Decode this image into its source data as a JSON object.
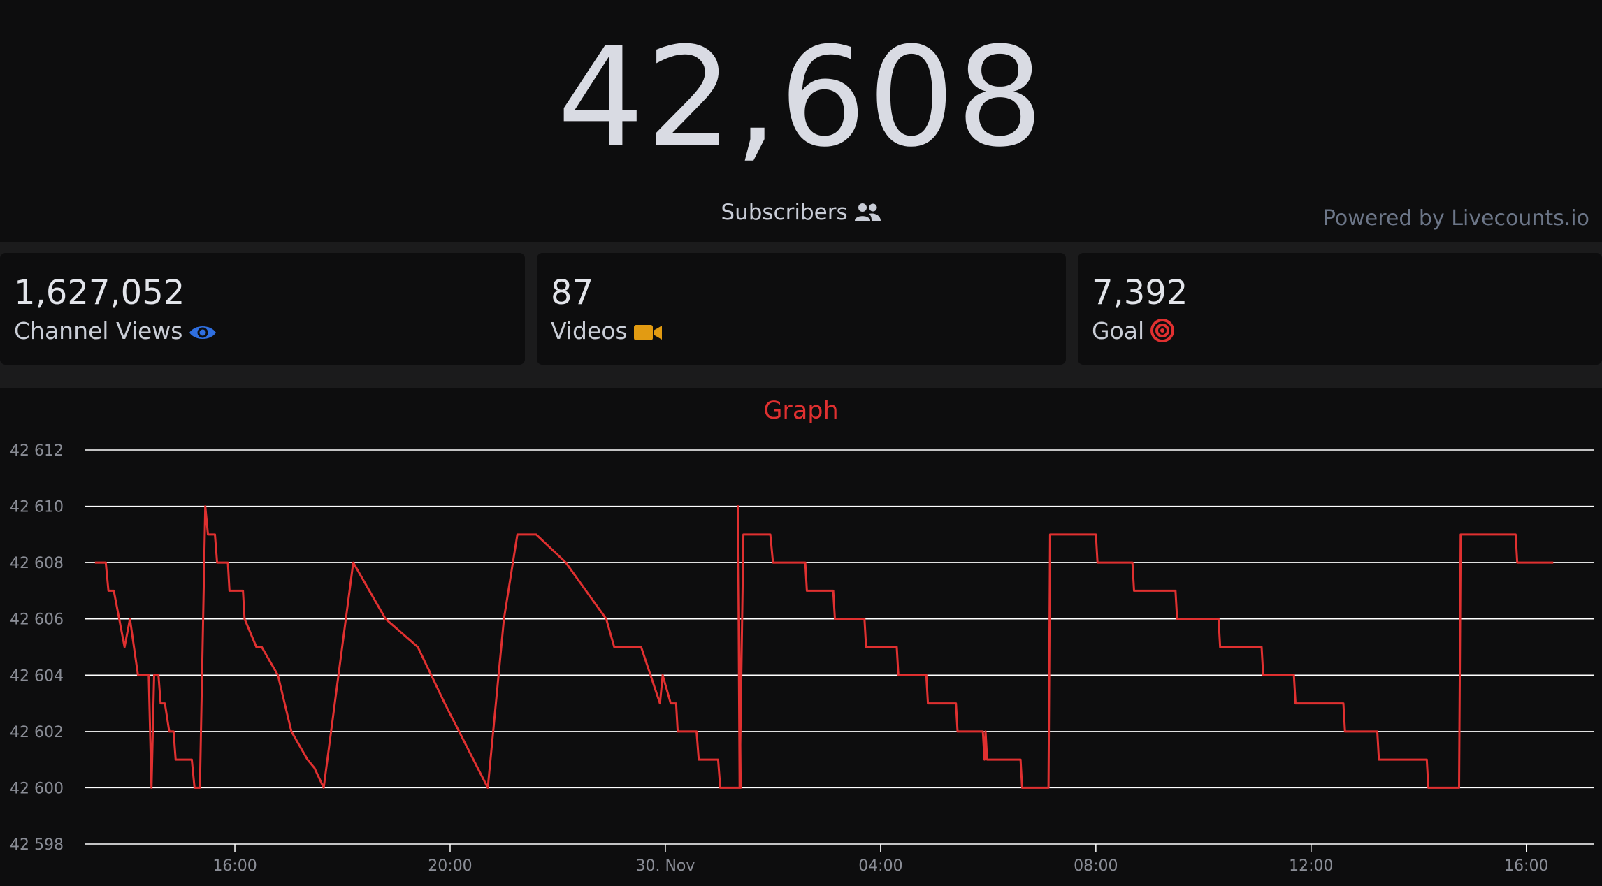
{
  "header": {
    "count": "42,608",
    "subscribers_label": "Subscribers",
    "powered_by": "Powered by Livecounts.io"
  },
  "stats": [
    {
      "value": "1,627,052",
      "label": "Channel Views",
      "icon": "eye-icon",
      "color": "#2f6fe0"
    },
    {
      "value": "87",
      "label": "Videos",
      "icon": "video-camera-icon",
      "color": "#e29b12"
    },
    {
      "value": "7,392",
      "label": "Goal",
      "icon": "target-icon",
      "color": "#e03030"
    }
  ],
  "graph": {
    "title": "Graph"
  },
  "colors": {
    "background": "#0d0d0e",
    "strip": "#1b1b1c",
    "line": "#e03030",
    "grid": "#ffffff"
  },
  "chart_data": {
    "type": "line",
    "title": "Graph",
    "xlabel": "",
    "ylabel": "",
    "ylim": [
      42598,
      42612
    ],
    "grid": true,
    "x_unit": "hours since 12:00 on 29 Nov",
    "xlim": [
      1.22,
      29.25
    ],
    "x_ticks": [
      {
        "x": 4,
        "label": "16:00"
      },
      {
        "x": 8,
        "label": "20:00"
      },
      {
        "x": 12,
        "label": "30. Nov"
      },
      {
        "x": 16,
        "label": "04:00"
      },
      {
        "x": 20,
        "label": "08:00"
      },
      {
        "x": 24,
        "label": "12:00"
      },
      {
        "x": 28,
        "label": "16:00"
      }
    ],
    "y_ticks": [
      {
        "y": 42612,
        "label": "42 612"
      },
      {
        "y": 42610,
        "label": "42 610"
      },
      {
        "y": 42608,
        "label": "42 608"
      },
      {
        "y": 42606,
        "label": "42 606"
      },
      {
        "y": 42604,
        "label": "42 604"
      },
      {
        "y": 42602,
        "label": "42 602"
      },
      {
        "y": 42600,
        "label": "42 600"
      },
      {
        "y": 42598,
        "label": "42 598"
      }
    ],
    "series": [
      {
        "name": "Subscribers",
        "color": "#e03030",
        "points": [
          [
            1.4,
            42608
          ],
          [
            1.6,
            42608
          ],
          [
            1.65,
            42607
          ],
          [
            1.75,
            42607
          ],
          [
            1.85,
            42606
          ],
          [
            1.95,
            42605
          ],
          [
            2.05,
            42606
          ],
          [
            2.2,
            42604
          ],
          [
            2.4,
            42604
          ],
          [
            2.45,
            42600
          ],
          [
            2.5,
            42604
          ],
          [
            2.58,
            42604
          ],
          [
            2.62,
            42603
          ],
          [
            2.7,
            42603
          ],
          [
            2.78,
            42602
          ],
          [
            2.86,
            42602
          ],
          [
            2.9,
            42601
          ],
          [
            3.0,
            42601
          ],
          [
            3.2,
            42601
          ],
          [
            3.25,
            42600
          ],
          [
            3.35,
            42600
          ],
          [
            3.45,
            42610
          ],
          [
            3.5,
            42609
          ],
          [
            3.63,
            42609
          ],
          [
            3.67,
            42608
          ],
          [
            3.87,
            42608
          ],
          [
            3.9,
            42607
          ],
          [
            4.15,
            42607
          ],
          [
            4.18,
            42606
          ],
          [
            4.4,
            42605
          ],
          [
            4.5,
            42605
          ],
          [
            4.8,
            42604
          ],
          [
            5.05,
            42602
          ],
          [
            5.35,
            42601
          ],
          [
            5.48,
            42600.7
          ],
          [
            5.65,
            42600
          ],
          [
            6.2,
            42608
          ],
          [
            6.8,
            42606
          ],
          [
            7.4,
            42605
          ],
          [
            7.9,
            42603
          ],
          [
            8.7,
            42600
          ],
          [
            9.0,
            42606
          ],
          [
            9.25,
            42609
          ],
          [
            9.6,
            42609
          ],
          [
            10.15,
            42608
          ],
          [
            10.9,
            42606
          ],
          [
            11.05,
            42605
          ],
          [
            11.55,
            42605
          ],
          [
            11.9,
            42603
          ],
          [
            11.95,
            42604
          ],
          [
            12.1,
            42603
          ],
          [
            12.2,
            42603
          ],
          [
            12.23,
            42602
          ],
          [
            12.58,
            42602
          ],
          [
            12.62,
            42601
          ],
          [
            12.98,
            42601
          ],
          [
            13.02,
            42600
          ],
          [
            13.4,
            42600
          ],
          [
            13.35,
            42610
          ],
          [
            13.38,
            42600
          ],
          [
            13.45,
            42609
          ],
          [
            13.95,
            42609
          ],
          [
            14.0,
            42608
          ],
          [
            14.6,
            42608
          ],
          [
            14.63,
            42607
          ],
          [
            15.12,
            42607
          ],
          [
            15.15,
            42606
          ],
          [
            15.7,
            42606
          ],
          [
            15.73,
            42605
          ],
          [
            16.3,
            42605
          ],
          [
            16.33,
            42604
          ],
          [
            16.85,
            42604
          ],
          [
            16.88,
            42603
          ],
          [
            17.4,
            42603
          ],
          [
            17.43,
            42602
          ],
          [
            17.9,
            42602
          ],
          [
            17.93,
            42601
          ],
          [
            17.95,
            42602
          ],
          [
            17.98,
            42601
          ],
          [
            18.6,
            42601
          ],
          [
            18.63,
            42600
          ],
          [
            19.12,
            42600
          ],
          [
            19.15,
            42609
          ],
          [
            20.0,
            42609
          ],
          [
            20.03,
            42608
          ],
          [
            20.68,
            42608
          ],
          [
            20.71,
            42607
          ],
          [
            21.48,
            42607
          ],
          [
            21.51,
            42606
          ],
          [
            22.28,
            42606
          ],
          [
            22.31,
            42605
          ],
          [
            23.08,
            42605
          ],
          [
            23.11,
            42604
          ],
          [
            23.68,
            42604
          ],
          [
            23.71,
            42603
          ],
          [
            24.6,
            42603
          ],
          [
            24.63,
            42602
          ],
          [
            25.23,
            42602
          ],
          [
            25.26,
            42601
          ],
          [
            26.15,
            42601
          ],
          [
            26.18,
            42600
          ],
          [
            26.75,
            42600
          ],
          [
            26.78,
            42609
          ],
          [
            27.8,
            42609
          ],
          [
            27.83,
            42608
          ],
          [
            28.5,
            42608
          ]
        ]
      }
    ]
  }
}
